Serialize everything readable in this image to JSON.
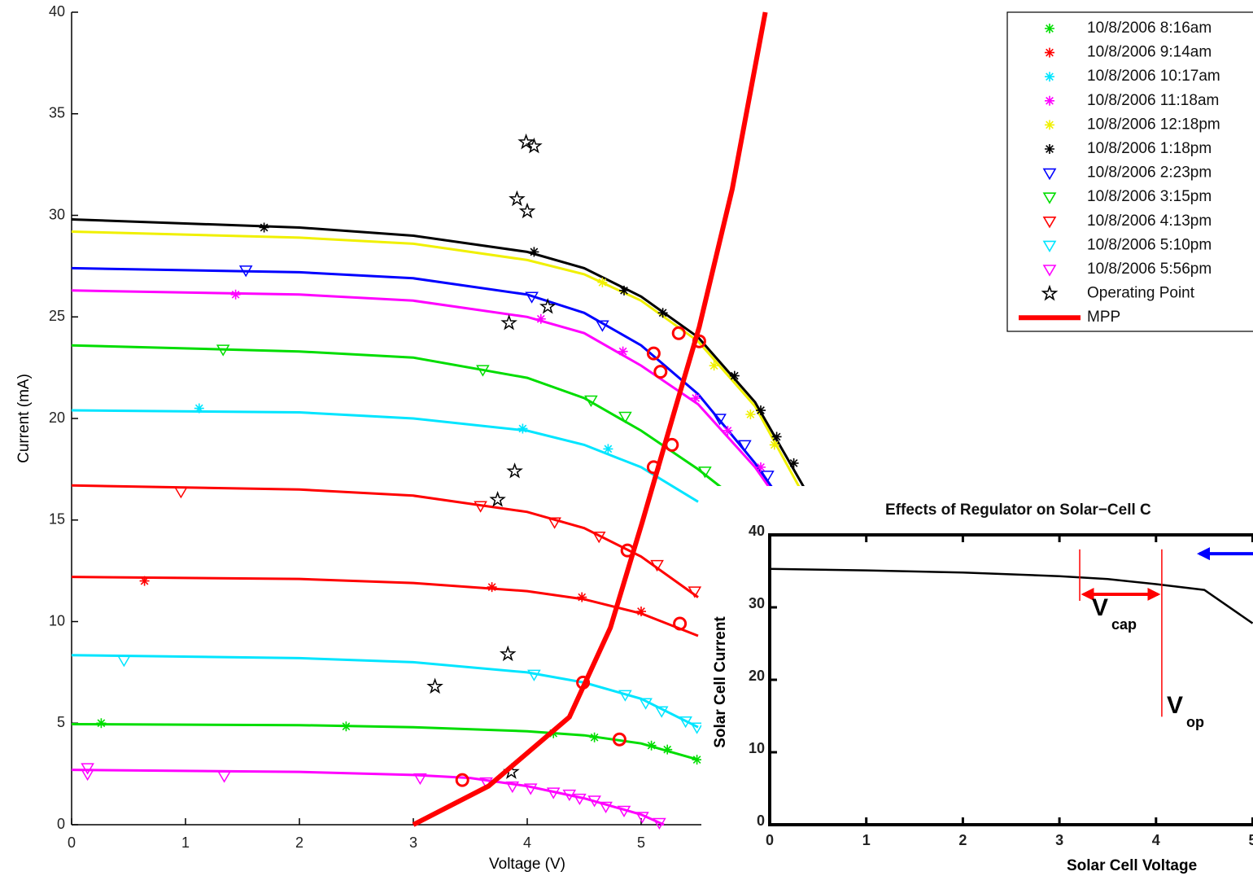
{
  "chart_data": [
    {
      "type": "scatter",
      "xlabel": "Voltage (V)",
      "ylabel": "Current (mA)",
      "xlim": [
        0,
        8
      ],
      "ylim": [
        0,
        40
      ],
      "xticks": [
        0,
        1,
        2,
        3,
        4,
        5
      ],
      "yticks": [
        0,
        5,
        10,
        15,
        20,
        25,
        30,
        35,
        40
      ],
      "series": [
        {
          "name": "10/8/2006 8:16am",
          "color": "#00dd00",
          "marker": "star",
          "x": [
            0.26,
            2.41,
            4.23,
            4.59,
            5.09,
            5.23,
            5.49
          ],
          "values": [
            5.0,
            4.84,
            4.5,
            4.3,
            3.9,
            3.7,
            3.2
          ],
          "fit_x": [
            0,
            2,
            3,
            4,
            4.5,
            5,
            5.5
          ],
          "fit_values": [
            4.95,
            4.9,
            4.8,
            4.6,
            4.4,
            4.0,
            3.2
          ]
        },
        {
          "name": "10/8/2006 9:14am",
          "color": "#ff0000",
          "marker": "star",
          "x": [
            0.64,
            3.69,
            4.48,
            5.0
          ],
          "values": [
            12.0,
            11.7,
            11.2,
            10.5
          ],
          "fit_x": [
            0,
            2,
            3,
            4,
            4.5,
            5,
            5.5
          ],
          "fit_values": [
            12.2,
            12.1,
            11.9,
            11.5,
            11.1,
            10.4,
            9.3
          ]
        },
        {
          "name": "10/8/2006 10:17am",
          "color": "#00e5ff",
          "marker": "star",
          "x": [
            1.12,
            3.96,
            4.71
          ],
          "values": [
            20.5,
            19.5,
            18.5
          ],
          "fit_x": [
            0,
            2,
            3,
            4,
            4.5,
            5,
            5.5
          ],
          "fit_values": [
            20.4,
            20.3,
            20.0,
            19.4,
            18.7,
            17.6,
            15.9
          ]
        },
        {
          "name": "10/8/2006 11:18am",
          "color": "#ff00ff",
          "marker": "star",
          "x": [
            1.44,
            4.12,
            4.84,
            5.48,
            5.76,
            6.05
          ],
          "values": [
            26.1,
            24.9,
            23.3,
            21.0,
            19.4,
            17.6
          ],
          "fit_x": [
            0,
            2,
            3,
            4,
            4.5,
            5,
            5.5,
            6,
            6.2
          ],
          "fit_values": [
            26.3,
            26.1,
            25.8,
            25.0,
            24.2,
            22.6,
            20.7,
            17.6,
            16
          ]
        },
        {
          "name": "10/8/2006 12:18pm",
          "color": "#f0f000",
          "marker": "star",
          "x": [
            4.66,
            5.64,
            5.96,
            6.17
          ],
          "values": [
            26.7,
            22.6,
            20.2,
            18.7
          ],
          "fit_x": [
            0,
            2,
            3,
            4,
            4.5,
            5,
            5.5,
            6,
            6.4
          ],
          "fit_values": [
            29.2,
            28.9,
            28.6,
            27.8,
            27.1,
            25.8,
            23.8,
            20.6,
            16.5
          ]
        },
        {
          "name": "10/8/2006 1:18pm",
          "color": "#000000",
          "marker": "star",
          "x": [
            1.69,
            4.06,
            4.85,
            5.19,
            5.82,
            6.05,
            6.19,
            6.34
          ],
          "values": [
            29.4,
            28.2,
            26.3,
            25.2,
            22.1,
            20.4,
            19.1,
            17.8
          ],
          "fit_x": [
            0,
            2,
            3,
            4,
            4.5,
            5,
            5.5,
            6,
            6.43
          ],
          "fit_values": [
            29.8,
            29.4,
            29,
            28.2,
            27.4,
            26,
            24,
            20.8,
            16.6
          ]
        },
        {
          "name": "10/8/2006 2:23pm",
          "color": "#0000ff",
          "marker": "triangle",
          "x": [
            1.53,
            4.04,
            4.66,
            5.69,
            5.91,
            6.11
          ],
          "values": [
            27.3,
            26.0,
            24.6,
            20.0,
            18.7,
            17.2
          ],
          "fit_x": [
            0,
            2,
            3,
            4,
            4.5,
            5,
            5.5,
            6,
            6.2
          ],
          "fit_values": [
            27.4,
            27.2,
            26.9,
            26.1,
            25.2,
            23.6,
            21.2,
            17.8,
            16.2
          ]
        },
        {
          "name": "10/8/2006 3:15pm",
          "color": "#00dd00",
          "marker": "triangle",
          "x": [
            1.33,
            3.61,
            4.56,
            4.86,
            5.56
          ],
          "values": [
            23.4,
            22.4,
            20.9,
            20.1,
            17.4
          ],
          "fit_x": [
            0,
            2,
            3,
            4,
            4.5,
            5,
            5.5,
            5.75
          ],
          "fit_values": [
            23.6,
            23.3,
            23.0,
            22.0,
            21.0,
            19.4,
            17.5,
            16.4
          ]
        },
        {
          "name": "10/8/2006 4:13pm",
          "color": "#ff0000",
          "marker": "triangle",
          "x": [
            0.96,
            3.59,
            4.24,
            4.63,
            5.14,
            5.47
          ],
          "values": [
            16.4,
            15.7,
            14.9,
            14.2,
            12.8,
            11.5
          ],
          "fit_x": [
            0,
            2,
            3,
            4,
            4.5,
            5,
            5.5
          ],
          "fit_values": [
            16.7,
            16.5,
            16.2,
            15.4,
            14.6,
            13.2,
            11.2
          ]
        },
        {
          "name": "10/8/2006 5:10pm",
          "color": "#00e5ff",
          "marker": "triangle",
          "x": [
            0.46,
            4.06,
            4.86,
            5.04,
            5.18,
            5.39,
            5.49
          ],
          "values": [
            8.1,
            7.4,
            6.4,
            6.0,
            5.6,
            5.1,
            4.8
          ],
          "fit_x": [
            0,
            2,
            3,
            4,
            4.5,
            5,
            5.5
          ],
          "fit_values": [
            8.35,
            8.2,
            8.0,
            7.5,
            7.0,
            6.2,
            4.8
          ]
        },
        {
          "name": "10/8/2006 5:56pm",
          "color": "#ff00ff",
          "marker": "triangle",
          "x": [
            0.14,
            0.14,
            1.34,
            3.06,
            3.64,
            3.87,
            4.03,
            4.23,
            4.37,
            4.46,
            4.59,
            4.69,
            4.85,
            5.01,
            5.16
          ],
          "values": [
            2.8,
            2.5,
            2.4,
            2.3,
            2.1,
            1.9,
            1.8,
            1.6,
            1.5,
            1.3,
            1.2,
            0.9,
            0.7,
            0.4,
            0.1
          ],
          "fit_x": [
            0,
            2,
            3,
            3.5,
            4,
            4.5,
            5,
            5.2
          ],
          "fit_values": [
            2.7,
            2.6,
            2.45,
            2.3,
            1.9,
            1.3,
            0.5,
            0
          ]
        },
        {
          "name": "Operating Point",
          "color": "#000000",
          "marker": "pentagram",
          "x": [
            3.99,
            4.06,
            3.91,
            4.0,
            3.84,
            4.18,
            3.89,
            3.74,
            3.83,
            3.19,
            3.86
          ],
          "values": [
            33.6,
            33.4,
            30.8,
            30.2,
            24.7,
            25.5,
            17.4,
            16.0,
            8.4,
            6.8,
            2.6
          ]
        },
        {
          "name": "MPP",
          "color": "#ff0000",
          "marker": "line",
          "x": [
            3.0,
            3.66,
            4.37,
            4.73,
            5.01,
            5.3,
            5.51,
            5.8,
            6.09
          ],
          "values": [
            0,
            1.9,
            5.3,
            9.7,
            14.9,
            20.5,
            24.5,
            31.3,
            40
          ]
        }
      ],
      "mpp_points": {
        "color": "#ff0000",
        "x": [
          3.43,
          4.49,
          4.81,
          4.88,
          5.34,
          5.27,
          5.11,
          5.17,
          5.11,
          5.33,
          5.51
        ],
        "values": [
          2.2,
          7.0,
          4.2,
          13.5,
          9.9,
          18.7,
          17.6,
          22.3,
          23.2,
          24.2,
          23.8
        ]
      }
    },
    {
      "type": "line",
      "title": "Effects of Regulator on Solar−Cell C",
      "xlabel": "Solar Cell Voltage",
      "ylabel": "Solar Cell Current",
      "x": [
        0,
        1,
        2,
        3,
        3.5,
        4,
        4.5,
        5
      ],
      "values": [
        35.3,
        35.1,
        34.8,
        34.3,
        33.9,
        33.2,
        32.4,
        27.8
      ],
      "color": "#000000",
      "xlim": [
        0,
        6
      ],
      "ylim": [
        0,
        40
      ],
      "xticks": [
        0,
        1,
        2,
        3,
        4,
        5
      ],
      "yticks": [
        0,
        10,
        20,
        30,
        40
      ],
      "vlines": [
        {
          "x": 3.21,
          "ymin": 30.9,
          "ymax": 38,
          "color": "#ff0000"
        },
        {
          "x": 4.06,
          "ymin": 14.9,
          "ymax": 38,
          "color": "#ff0000"
        }
      ],
      "arrows": [
        {
          "from": 3.25,
          "to": 4.02,
          "y": 31.8,
          "color": "#ff0000",
          "both": true
        },
        {
          "from": 5.4,
          "to": 4.45,
          "y": 37.4,
          "color": "#0000ff",
          "both": false
        }
      ],
      "annotations": [
        {
          "text": "V",
          "sub": "cap"
        },
        {
          "text": "V",
          "sub": "op"
        }
      ]
    }
  ]
}
